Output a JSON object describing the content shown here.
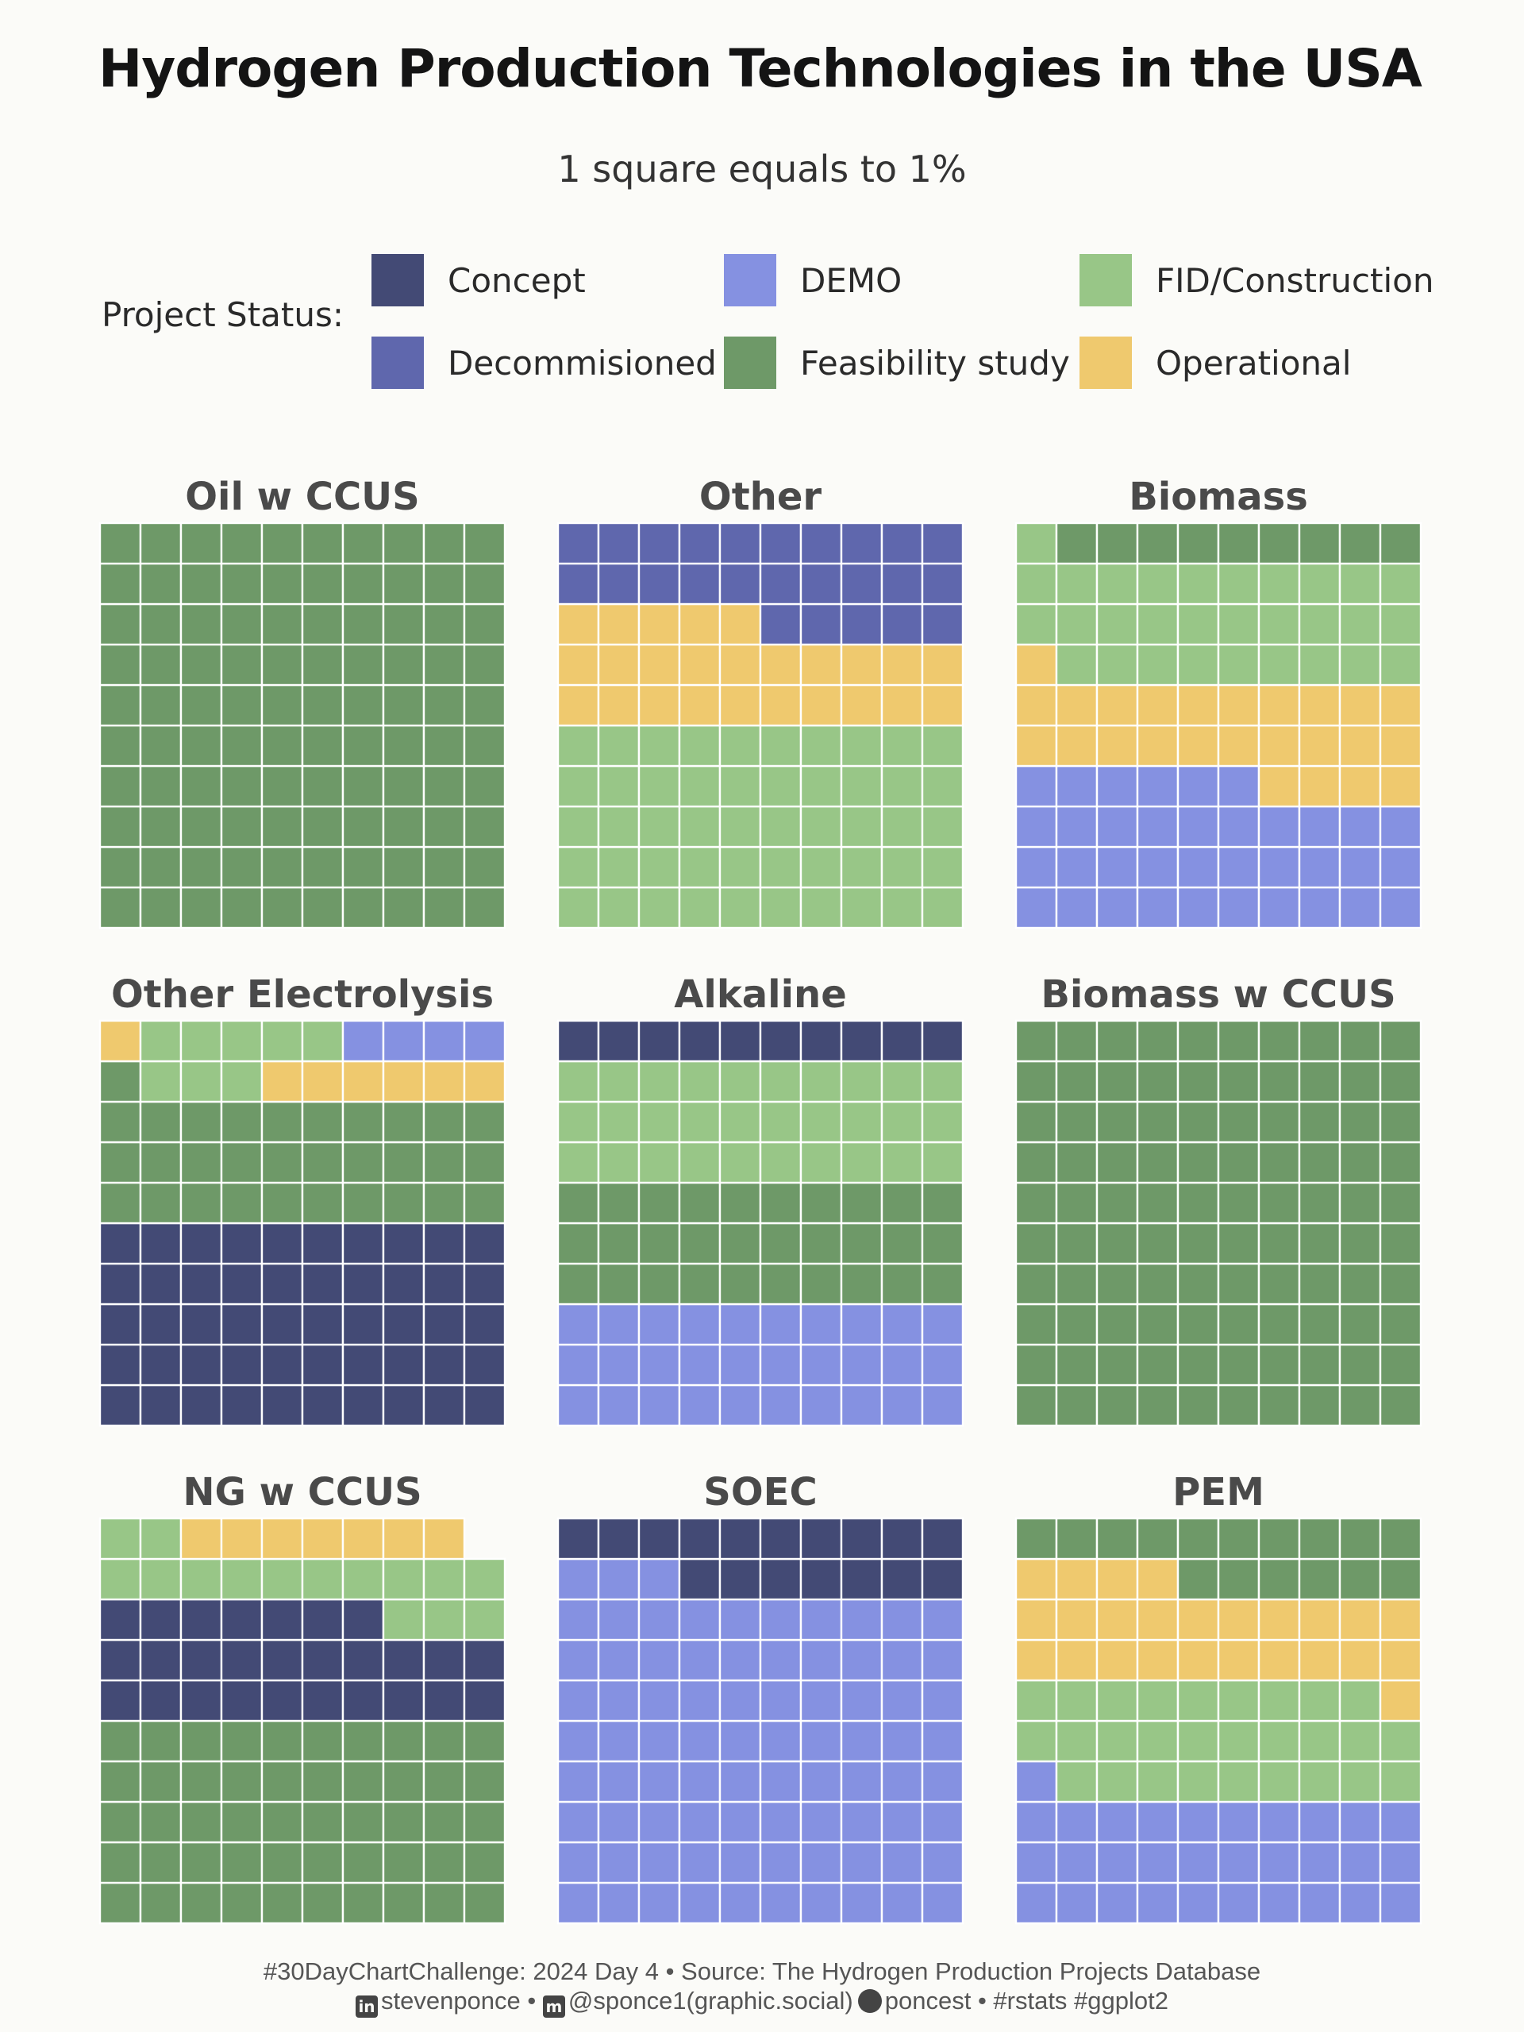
{
  "title": "Hydrogen Production Technologies in the USA",
  "subtitle": "1 square equals to 1%",
  "legend": {
    "title": "Project Status:",
    "items": [
      {
        "key": "concept",
        "label": "Concept",
        "color": "#434a75"
      },
      {
        "key": "demo",
        "label": "DEMO",
        "color": "#8591e1"
      },
      {
        "key": "fid",
        "label": "FID/Construction",
        "color": "#98c687"
      },
      {
        "key": "decom",
        "label": "Decommisioned",
        "color": "#5f67ad"
      },
      {
        "key": "feas",
        "label": "Feasibility study",
        "color": "#6e9968"
      },
      {
        "key": "oper",
        "label": "Operational",
        "color": "#efc96e"
      }
    ]
  },
  "chart_data": {
    "type": "waffle",
    "unit": "1 square = 1%",
    "grid": [
      10,
      10
    ],
    "fill_order": "bottom-up, row-wise left to right",
    "panels": [
      {
        "name": "Oil w CCUS",
        "segments": [
          {
            "status": "feas",
            "value": 100
          }
        ]
      },
      {
        "name": "Other",
        "segments": [
          {
            "status": "fid",
            "value": 50
          },
          {
            "status": "oper",
            "value": 25
          },
          {
            "status": "decom",
            "value": 25
          }
        ]
      },
      {
        "name": "Biomass",
        "segments": [
          {
            "status": "demo",
            "value": 36
          },
          {
            "status": "oper",
            "value": 25
          },
          {
            "status": "fid",
            "value": 30
          },
          {
            "status": "feas",
            "value": 9
          }
        ]
      },
      {
        "name": "Other Electrolysis",
        "segments": [
          {
            "status": "concept",
            "value": 50
          },
          {
            "status": "feas",
            "value": 31
          },
          {
            "status": "fid",
            "value": 3
          },
          {
            "status": "oper",
            "value": 7
          },
          {
            "status": "fid",
            "value": 5
          },
          {
            "status": "demo",
            "value": 4
          }
        ]
      },
      {
        "name": "Alkaline",
        "segments": [
          {
            "status": "demo",
            "value": 30
          },
          {
            "status": "feas",
            "value": 30
          },
          {
            "status": "fid",
            "value": 30
          },
          {
            "status": "concept",
            "value": 10
          }
        ]
      },
      {
        "name": "Biomass w CCUS",
        "segments": [
          {
            "status": "feas",
            "value": 100
          }
        ]
      },
      {
        "name": "NG w CCUS",
        "segments": [
          {
            "status": "feas",
            "value": 50
          },
          {
            "status": "concept",
            "value": 27
          },
          {
            "status": "fid",
            "value": 15
          },
          {
            "status": "oper",
            "value": 7
          }
        ]
      },
      {
        "name": "SOEC",
        "segments": [
          {
            "status": "demo",
            "value": 83
          },
          {
            "status": "concept",
            "value": 17
          }
        ]
      },
      {
        "name": "PEM",
        "segments": [
          {
            "status": "demo",
            "value": 31
          },
          {
            "status": "fid",
            "value": 28
          },
          {
            "status": "oper",
            "value": 25
          },
          {
            "status": "feas",
            "value": 16
          }
        ]
      }
    ]
  },
  "caption": {
    "line1": "#30DayChartChallenge: 2024 Day 4 • Source: The Hydrogen Production Projects Database",
    "linkedin_icon": "linkedin-icon",
    "linkedin": "stevenponce •",
    "mastodon_icon": "mastodon-icon",
    "mastodon": "@sponce1(graphic.social)",
    "github_icon": "github-icon",
    "github": "poncest • #rstats #ggplot2"
  }
}
